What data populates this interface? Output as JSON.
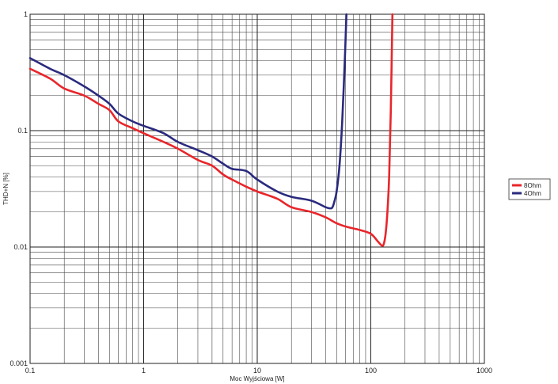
{
  "chart_data": {
    "type": "line",
    "title": "",
    "xlabel": "Moc Wyjściowa [W]",
    "ylabel": "THD+N [%]",
    "x_scale": "log",
    "y_scale": "log",
    "xlim": [
      0.1,
      1000
    ],
    "ylim": [
      0.001,
      1
    ],
    "grid": true,
    "legend_position": "right",
    "x_ticks": [
      "0.1",
      "1",
      "10",
      "100",
      "1000"
    ],
    "y_ticks": [
      "0.001",
      "0.01",
      "0.1",
      "1"
    ],
    "series": [
      {
        "name": "8Ohm",
        "color": "#e8262b",
        "x": [
          0.1,
          0.15,
          0.2,
          0.3,
          0.4,
          0.5,
          0.6,
          0.8,
          1,
          1.5,
          2,
          3,
          4,
          5,
          6,
          8,
          10,
          15,
          20,
          30,
          40,
          50,
          60,
          80,
          100,
          115,
          125,
          130,
          135,
          140,
          145,
          150,
          155
        ],
        "y": [
          0.34,
          0.28,
          0.23,
          0.2,
          0.17,
          0.15,
          0.12,
          0.105,
          0.095,
          0.08,
          0.07,
          0.056,
          0.05,
          0.042,
          0.038,
          0.033,
          0.03,
          0.026,
          0.022,
          0.02,
          0.018,
          0.016,
          0.015,
          0.014,
          0.013,
          0.0112,
          0.0103,
          0.0106,
          0.013,
          0.02,
          0.04,
          0.15,
          1
        ]
      },
      {
        "name": "4Ohm",
        "color": "#2a2a7e",
        "x": [
          0.1,
          0.15,
          0.2,
          0.3,
          0.4,
          0.5,
          0.6,
          0.8,
          1,
          1.5,
          2,
          3,
          4,
          5,
          6,
          8,
          10,
          15,
          20,
          30,
          40,
          44,
          46,
          48,
          50,
          53,
          56,
          59,
          61
        ],
        "y": [
          0.42,
          0.34,
          0.3,
          0.24,
          0.2,
          0.17,
          0.14,
          0.12,
          0.11,
          0.095,
          0.08,
          0.068,
          0.06,
          0.052,
          0.047,
          0.045,
          0.038,
          0.03,
          0.027,
          0.025,
          0.022,
          0.0215,
          0.022,
          0.025,
          0.03,
          0.05,
          0.12,
          0.4,
          1
        ]
      }
    ]
  }
}
